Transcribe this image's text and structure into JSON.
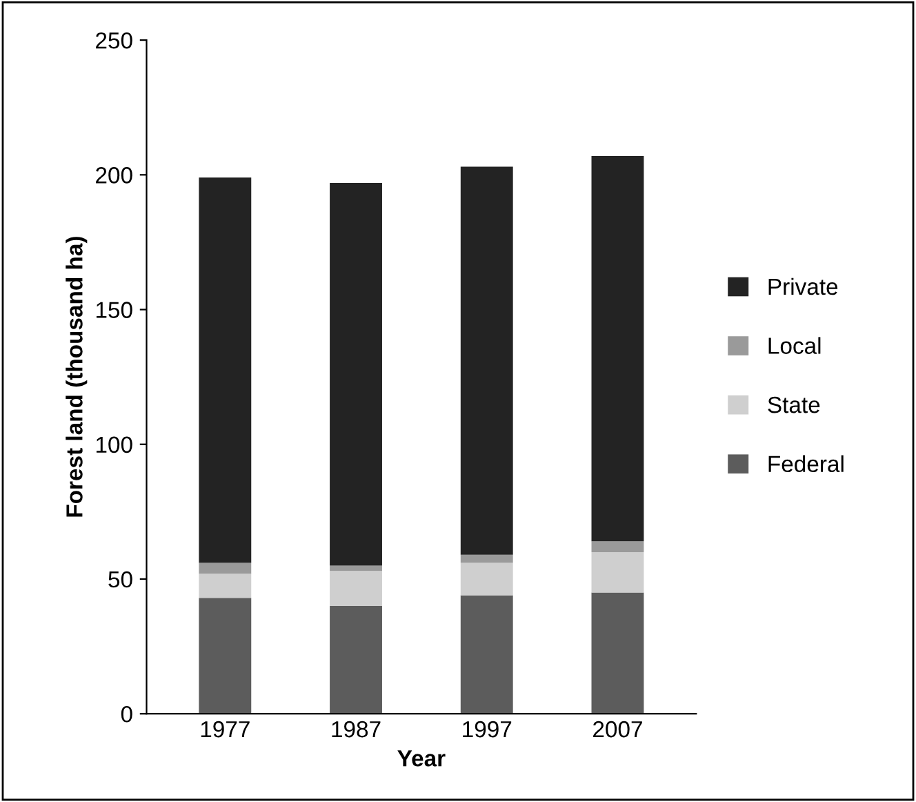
{
  "chart_data": {
    "type": "bar",
    "stacked": true,
    "xlabel": "Year",
    "ylabel": "Forest land (thousand ha)",
    "categories": [
      "1977",
      "1987",
      "1997",
      "2007"
    ],
    "series": [
      {
        "name": "Federal",
        "color": "#5c5c5c",
        "values": [
          43,
          40,
          44,
          45
        ]
      },
      {
        "name": "State",
        "color": "#cfcfcf",
        "values": [
          9,
          13,
          12,
          15
        ]
      },
      {
        "name": "Local",
        "color": "#9a9a9a",
        "values": [
          4,
          2,
          3,
          4
        ]
      },
      {
        "name": "Private",
        "color": "#232323",
        "values": [
          143,
          142,
          144,
          143
        ]
      }
    ],
    "ylim": [
      0,
      250
    ],
    "yticks": [
      0,
      50,
      100,
      150,
      200,
      250
    ],
    "grid": false,
    "legend": "right"
  }
}
